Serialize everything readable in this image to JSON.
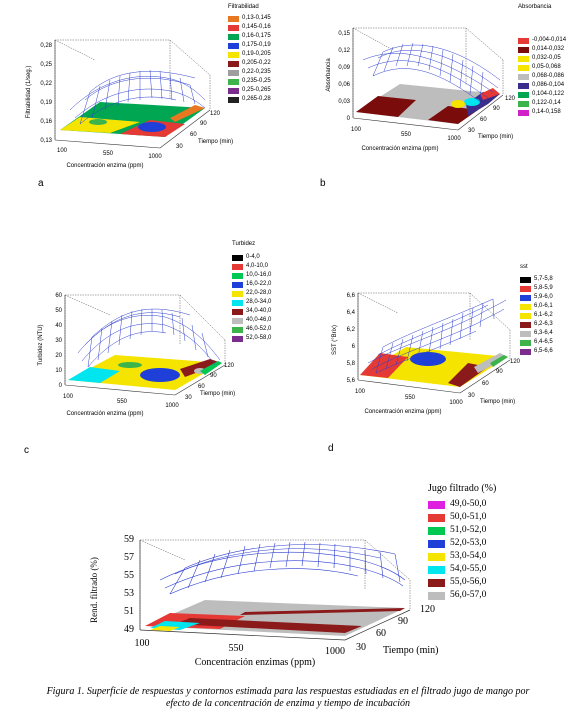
{
  "panels": {
    "a": {
      "letter": "a",
      "legend_title": "Filtrabilidad",
      "legend": [
        {
          "label": "0,13-0,145",
          "color": "#e87722"
        },
        {
          "label": "0,145-0,16",
          "color": "#e53935"
        },
        {
          "label": "0,16-0,175",
          "color": "#00a651"
        },
        {
          "label": "0,175-0,19",
          "color": "#1e3fd8"
        },
        {
          "label": "0,19-0,205",
          "color": "#f4e400"
        },
        {
          "label": "0,205-0,22",
          "color": "#8b1a1a"
        },
        {
          "label": "0,22-0,235",
          "color": "#9e9e9e"
        },
        {
          "label": "0,235-0,25",
          "color": "#3cb44b"
        },
        {
          "label": "0,25-0,265",
          "color": "#7b2d8e"
        },
        {
          "label": "0,265-0,28",
          "color": "#222222"
        }
      ],
      "zlabel": "Filtrabilidad (1/seg.)",
      "zticks": [
        "0,13",
        "0,16",
        "0,19",
        "0,22",
        "0,25",
        "0,28"
      ],
      "xlabel": "Concentración enzima (ppm)",
      "xticks": [
        "100",
        "550",
        "1000"
      ],
      "ylabel": "Tiempo (min)",
      "yticks": [
        "30",
        "60",
        "90",
        "120"
      ]
    },
    "b": {
      "letter": "b",
      "legend_title": "Absorbancia",
      "legend": [
        {
          "label": "-0,004-0,014",
          "color": "#e53935"
        },
        {
          "label": "0,014-0,032",
          "color": "#7a0c0c"
        },
        {
          "label": "0,032-0,05",
          "color": "#f4e400"
        },
        {
          "label": "0,05-0,068",
          "color": "#f4e400"
        },
        {
          "label": "0,068-0,086",
          "color": "#bdbdbd"
        },
        {
          "label": "0,086-0,104",
          "color": "#3b2d8c"
        },
        {
          "label": "0,104-0,122",
          "color": "#00a651"
        },
        {
          "label": "0,122-0,14",
          "color": "#3cb44b"
        },
        {
          "label": "0,14-0,158",
          "color": "#d020c8"
        }
      ],
      "zlabel": "Absorbancia",
      "zticks": [
        "0",
        "0,03",
        "0,06",
        "0,09",
        "0,12",
        "0,15"
      ],
      "xlabel": "Concentración enzima (ppm)",
      "xticks": [
        "100",
        "550",
        "1000"
      ],
      "ylabel": "Tiempo (min)",
      "yticks": [
        "30",
        "60",
        "90",
        "120"
      ]
    },
    "c": {
      "letter": "c",
      "legend_title": "Turbidez",
      "legend": [
        {
          "label": "0-4,0",
          "color": "#000000"
        },
        {
          "label": "4,0-10,0",
          "color": "#e53935"
        },
        {
          "label": "10,0-16,0",
          "color": "#00c853"
        },
        {
          "label": "16,0-22,0",
          "color": "#1e3fd8"
        },
        {
          "label": "22,0-28,0",
          "color": "#f4e400"
        },
        {
          "label": "28,0-34,0",
          "color": "#00e5ee"
        },
        {
          "label": "34,0-40,0",
          "color": "#8b1a1a"
        },
        {
          "label": "40,0-46,0",
          "color": "#bdbdbd"
        },
        {
          "label": "46,0-52,0",
          "color": "#3cb44b"
        },
        {
          "label": "52,0-58,0",
          "color": "#7b2d8e"
        }
      ],
      "zlabel": "Turbidez (NTU)",
      "zticks": [
        "0",
        "10",
        "20",
        "30",
        "40",
        "50",
        "60"
      ],
      "xlabel": "Concentración enzima (ppm)",
      "xticks": [
        "100",
        "550",
        "1000"
      ],
      "ylabel": "Tiempo (min)",
      "yticks": [
        "30",
        "60",
        "90",
        "120"
      ]
    },
    "d": {
      "letter": "d",
      "legend_title": "sst",
      "legend": [
        {
          "label": "5,7-5,8",
          "color": "#000000"
        },
        {
          "label": "5,8-5,9",
          "color": "#e53935"
        },
        {
          "label": "5,9-6,0",
          "color": "#1e3fd8"
        },
        {
          "label": "6,0-6,1",
          "color": "#f4e400"
        },
        {
          "label": "6,1-6,2",
          "color": "#f4e400"
        },
        {
          "label": "6,2-6,3",
          "color": "#8b1a1a"
        },
        {
          "label": "6,3-6,4",
          "color": "#bdbdbd"
        },
        {
          "label": "6,4-6,5",
          "color": "#3cb44b"
        },
        {
          "label": "6,5-6,6",
          "color": "#7b2d8e"
        }
      ],
      "zlabel": "SST (°Brix)",
      "zticks": [
        "5,6",
        "5,8",
        "6",
        "6,2",
        "6,4",
        "6,6"
      ],
      "xlabel": "Concentración enzima (ppm)",
      "xticks": [
        "100",
        "550",
        "1000"
      ],
      "ylabel": "Tiempo (min)",
      "yticks": [
        "30",
        "60",
        "90",
        "120"
      ]
    },
    "e": {
      "legend_title": "Jugo filtrado (%)",
      "legend": [
        {
          "label": "49,0-50,0",
          "color": "#e020e0"
        },
        {
          "label": "50,0-51,0",
          "color": "#e53935"
        },
        {
          "label": "51,0-52,0",
          "color": "#00c853"
        },
        {
          "label": "52,0-53,0",
          "color": "#1e3fd8"
        },
        {
          "label": "53,0-54,0",
          "color": "#f4e400"
        },
        {
          "label": "54,0-55,0",
          "color": "#00e5ee"
        },
        {
          "label": "55,0-56,0",
          "color": "#8b1a1a"
        },
        {
          "label": "56,0-57,0",
          "color": "#bdbdbd"
        }
      ],
      "zlabel": "Rend. filtrado (%)",
      "zticks": [
        "49",
        "51",
        "53",
        "55",
        "57",
        "59"
      ],
      "xlabel": "Concentración enzimas (ppm)",
      "xticks": [
        "100",
        "550",
        "1000"
      ],
      "ylabel": "Tiempo (min)",
      "yticks": [
        "30",
        "60",
        "90",
        "120"
      ]
    }
  },
  "caption": {
    "line1": "Figura 1. Superficie de respuestas y contornos estimada para las respuestas estudiadas en el filtrado jugo de mango por",
    "line2": "efecto de la concentración de enzima y tiempo de incubación"
  }
}
